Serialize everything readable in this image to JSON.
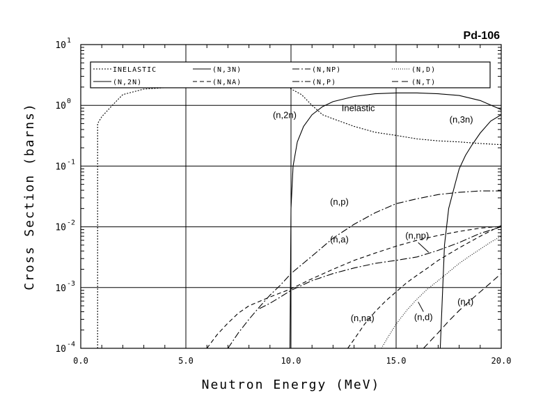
{
  "chart_data": {
    "type": "line",
    "title": "Pd-106",
    "xlabel": "Neutron Energy (MeV)",
    "ylabel": "Cross Section (barns)",
    "xlim": [
      0,
      20
    ],
    "ylim": [
      0.0001,
      10
    ],
    "yscale": "log",
    "grid": true,
    "legend_position": "top",
    "x_ticks": [
      "0.0",
      "5.0",
      "10.0",
      "15.0",
      "20.0"
    ],
    "y_ticks": [
      {
        "value": 10,
        "base": "10",
        "exp": "1"
      },
      {
        "value": 1,
        "base": "10",
        "exp": "0"
      },
      {
        "value": 0.1,
        "base": "10",
        "exp": "-1"
      },
      {
        "value": 0.01,
        "base": "10",
        "exp": "-2"
      },
      {
        "value": 0.001,
        "base": "10",
        "exp": "-3"
      },
      {
        "value": 0.0001,
        "base": "10",
        "exp": "-4"
      }
    ],
    "legend": [
      {
        "label": "INELASTIC",
        "dash": "dot"
      },
      {
        "label": "(N,3N)",
        "dash": "solid"
      },
      {
        "label": "(N,NP)",
        "dash": "dashdot"
      },
      {
        "label": "(N,D)",
        "dash": "fine"
      },
      {
        "label": "(N,2N)",
        "dash": "solid"
      },
      {
        "label": "(N,NA)",
        "dash": "dash"
      },
      {
        "label": "(N,P)",
        "dash": "dashdot"
      },
      {
        "label": "(N,T)",
        "dash": "longdash"
      }
    ],
    "series": [
      {
        "key": "inelastic",
        "dash": "dot",
        "x": [
          0.8,
          0.8,
          1.0,
          1.5,
          2.0,
          3.0,
          4.0,
          5.0,
          6.0,
          7.0,
          8.0,
          9.0,
          9.9,
          10.5,
          11.0,
          11.5,
          12.0,
          13.0,
          14.0,
          15.0,
          16.0,
          17.0,
          18.0,
          19.0,
          20.0
        ],
        "y": [
          0.0001,
          0.5,
          0.65,
          1.0,
          1.5,
          1.85,
          1.95,
          2.0,
          2.0,
          2.0,
          2.0,
          2.0,
          1.95,
          1.5,
          1.0,
          0.7,
          0.6,
          0.45,
          0.36,
          0.32,
          0.28,
          0.26,
          0.25,
          0.235,
          0.225
        ]
      },
      {
        "key": "n2n",
        "dash": "solid",
        "x": [
          9.95,
          10.0,
          10.1,
          10.3,
          10.6,
          11.0,
          11.5,
          12.0,
          13.0,
          14.0,
          15.0,
          16.0,
          17.0,
          18.0,
          19.0,
          20.0
        ],
        "y": [
          0.0001,
          0.02,
          0.1,
          0.25,
          0.45,
          0.7,
          0.95,
          1.15,
          1.4,
          1.55,
          1.6,
          1.6,
          1.55,
          1.45,
          1.2,
          0.85
        ]
      },
      {
        "key": "n3n",
        "dash": "solid",
        "x": [
          17.1,
          17.3,
          17.5,
          17.8,
          18.0,
          18.3,
          18.6,
          19.0,
          19.5,
          20.0
        ],
        "y": [
          0.0001,
          0.005,
          0.02,
          0.05,
          0.09,
          0.15,
          0.22,
          0.35,
          0.55,
          0.7
        ]
      },
      {
        "key": "np",
        "dash": "dashdot",
        "x": [
          8.5,
          9.0,
          9.5,
          10.0,
          11.0,
          12.0,
          13.0,
          14.0,
          15.0,
          16.0,
          17.0,
          18.0,
          19.0,
          20.0
        ],
        "y": [
          0.00045,
          0.00055,
          0.0007,
          0.0009,
          0.0013,
          0.0017,
          0.0021,
          0.0025,
          0.0028,
          0.0032,
          0.0041,
          0.0055,
          0.0078,
          0.01
        ]
      },
      {
        "key": "p",
        "dash": "dashdot",
        "x": [
          7.0,
          7.5,
          8.0,
          8.5,
          9.0,
          9.5,
          10.0,
          11.0,
          12.0,
          13.0,
          14.0,
          15.0,
          16.0,
          17.0,
          18.0,
          19.0,
          20.0
        ],
        "y": [
          0.0001,
          0.00018,
          0.0003,
          0.00048,
          0.00075,
          0.0011,
          0.0017,
          0.0033,
          0.0065,
          0.011,
          0.017,
          0.024,
          0.029,
          0.034,
          0.037,
          0.039,
          0.039
        ]
      },
      {
        "key": "a",
        "dash": "dash",
        "x": [
          6.0,
          6.5,
          7.0,
          7.5,
          8.0,
          9.0,
          10.0,
          11.0,
          12.0,
          13.0,
          14.0,
          15.0,
          16.0,
          17.0,
          18.0,
          19.0,
          20.0
        ],
        "y": [
          0.0001,
          0.00017,
          0.00026,
          0.00038,
          0.0005,
          0.0007,
          0.00095,
          0.0014,
          0.002,
          0.0028,
          0.0037,
          0.0048,
          0.006,
          0.0072,
          0.0084,
          0.0095,
          0.0102
        ]
      },
      {
        "key": "na",
        "dash": "dash",
        "x": [
          12.7,
          13.0,
          13.5,
          14.0,
          14.5,
          15.0,
          15.5,
          16.0,
          16.5,
          17.0,
          18.0,
          19.0,
          20.0
        ],
        "y": [
          0.0001,
          0.00014,
          0.00025,
          0.0004,
          0.0006,
          0.00085,
          0.0012,
          0.0016,
          0.0021,
          0.0028,
          0.0045,
          0.007,
          0.0105
        ]
      },
      {
        "key": "d",
        "dash": "fine",
        "x": [
          14.3,
          14.6,
          15.0,
          15.5,
          16.0,
          16.5,
          17.0,
          17.5,
          18.0,
          18.5,
          19.0,
          19.5,
          20.0
        ],
        "y": [
          0.0001,
          0.00015,
          0.00025,
          0.00042,
          0.00065,
          0.00095,
          0.0013,
          0.0018,
          0.0025,
          0.0033,
          0.0043,
          0.0056,
          0.007
        ]
      },
      {
        "key": "t",
        "dash": "longdash",
        "x": [
          16.3,
          16.7,
          17.0,
          17.5,
          18.0,
          18.5,
          19.0,
          19.5,
          20.0
        ],
        "y": [
          0.0001,
          0.00014,
          0.00018,
          0.00028,
          0.00042,
          0.0006,
          0.00085,
          0.0012,
          0.0017
        ]
      }
    ],
    "annotations": [
      {
        "text": "(n,2n)",
        "x": 9.7,
        "y": 0.62
      },
      {
        "text": "Inelastic",
        "x": 13.2,
        "y": 0.8
      },
      {
        "text": "(n,3n)",
        "x": 18.1,
        "y": 0.52
      },
      {
        "text": "(n,p)",
        "x": 12.3,
        "y": 0.023
      },
      {
        "text": "(n,a)",
        "x": 12.3,
        "y": 0.0055
      },
      {
        "text": "(n,np)",
        "x": 16.0,
        "y": 0.0064
      },
      {
        "text": "(n,na)",
        "x": 13.4,
        "y": 0.00028
      },
      {
        "text": "(n,d)",
        "x": 16.3,
        "y": 0.00029
      },
      {
        "text": "(n,t)",
        "x": 18.3,
        "y": 0.00052
      }
    ]
  }
}
